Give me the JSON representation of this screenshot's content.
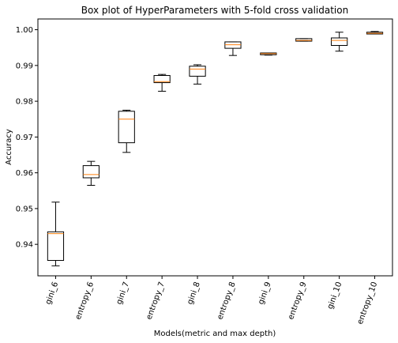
{
  "chart_data": {
    "type": "box",
    "title": "Box plot of HyperParameters with 5-fold cross validation",
    "xlabel": "Models(metric and max depth)",
    "ylabel": "Accuracy",
    "ylim": [
      0.9312,
      1.003
    ],
    "yticks": [
      "0.94",
      "0.95",
      "0.96",
      "0.97",
      "0.98",
      "0.99",
      "1.00"
    ],
    "grid": false,
    "colors": {
      "box": "#000000",
      "median": "#ff7f0e"
    },
    "categories": [
      "gini_6",
      "entropy_6",
      "gini_7",
      "entropy_7",
      "gini_8",
      "entropy_8",
      "gini_9",
      "entropy_9",
      "gini_10",
      "entropy_10"
    ],
    "boxes": [
      {
        "whislo": 0.934,
        "q1": 0.9355,
        "med": 0.943,
        "q3": 0.9435,
        "whishi": 0.9518
      },
      {
        "whislo": 0.9565,
        "q1": 0.9586,
        "med": 0.9595,
        "q3": 0.962,
        "whishi": 0.9632
      },
      {
        "whislo": 0.9657,
        "q1": 0.9684,
        "med": 0.975,
        "q3": 0.9772,
        "whishi": 0.9775
      },
      {
        "whislo": 0.9828,
        "q1": 0.9852,
        "med": 0.9855,
        "q3": 0.9872,
        "whishi": 0.9875
      },
      {
        "whislo": 0.9848,
        "q1": 0.987,
        "med": 0.989,
        "q3": 0.9898,
        "whishi": 0.9902
      },
      {
        "whislo": 0.9928,
        "q1": 0.9948,
        "med": 0.9958,
        "q3": 0.9966,
        "whishi": 0.9966
      },
      {
        "whislo": 0.9929,
        "q1": 0.993,
        "med": 0.9933,
        "q3": 0.9935,
        "whishi": 0.9935
      },
      {
        "whislo": 0.9968,
        "q1": 0.9968,
        "med": 0.997,
        "q3": 0.9975,
        "whishi": 0.9975
      },
      {
        "whislo": 0.994,
        "q1": 0.9956,
        "med": 0.997,
        "q3": 0.9977,
        "whishi": 0.9993
      },
      {
        "whislo": 0.9988,
        "q1": 0.9988,
        "med": 0.999,
        "q3": 0.9993,
        "whishi": 0.9995
      }
    ]
  }
}
